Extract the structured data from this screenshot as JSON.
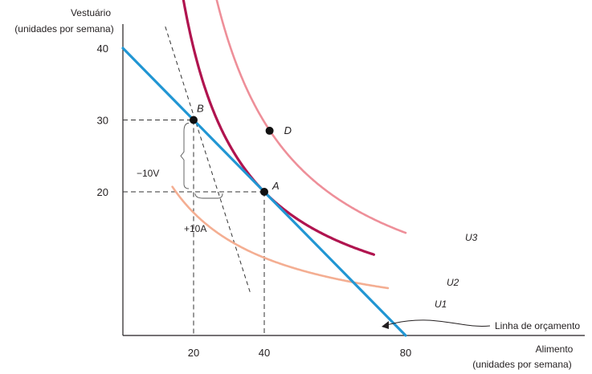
{
  "chart_data": {
    "type": "line",
    "xlabel": [
      "Alimento",
      "(unidades por semana)"
    ],
    "ylabel": [
      "Vestuário",
      "(unidades por semana)"
    ],
    "xticks": [
      20,
      40,
      80
    ],
    "yticks": [
      20,
      30,
      40
    ],
    "xlim": [
      8,
      90
    ],
    "ylim": [
      0,
      47
    ],
    "grid": false,
    "colors": {
      "budget": "#2196d3",
      "u1": "#f4ae92",
      "u2": "#b0144f",
      "u3": "#ee8f99",
      "guide": "#333333"
    },
    "budget_line": {
      "label": "Linha de orçamento",
      "x": [
        0,
        80
      ],
      "y": [
        40,
        0
      ]
    },
    "series": [
      {
        "name": "U1",
        "k": 590,
        "x0": -14.5,
        "x_range": [
          14,
          75
        ]
      },
      {
        "name": "U2",
        "k": 800,
        "x0": 0,
        "x_range": [
          17,
          71
        ]
      },
      {
        "name": "U3",
        "k": 1100,
        "x0": 3,
        "x_range": [
          24,
          80
        ]
      }
    ],
    "points": [
      {
        "label": "A",
        "x": 40,
        "y": 20
      },
      {
        "label": "B",
        "x": 20,
        "y": 30
      },
      {
        "label": "D",
        "x": 41.5,
        "y": 28.5
      }
    ],
    "tangent_at_B": {
      "x": [
        12,
        36
      ],
      "y": [
        43,
        6
      ]
    },
    "annotations": {
      "delta_v": "−10V",
      "delta_a": "+10A"
    }
  }
}
